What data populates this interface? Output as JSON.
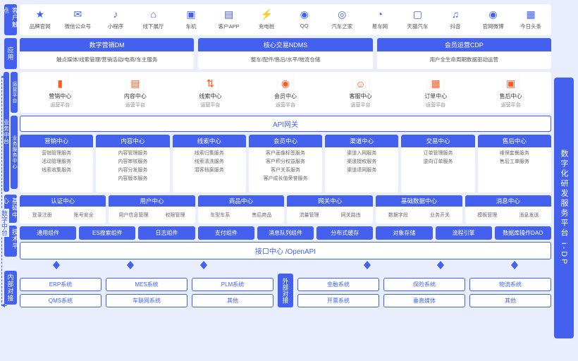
{
  "colors": {
    "primary": "#4361ee",
    "bg": "#e8eefd",
    "accent": "#ff5a1f"
  },
  "left": {
    "l1": "客户触点",
    "l2": "应用",
    "l3": "运营平台",
    "l4": "业务服务中心",
    "l5": "基础中心",
    "l6": "技术平台",
    "l7": "内部对接",
    "midGroup": "业务中台",
    "bracket": "数字中台"
  },
  "right": "数字化研发服务平台 i-DP",
  "touchpoints": [
    {
      "icon": "★",
      "label": "品牌官网"
    },
    {
      "icon": "✉",
      "label": "微信公众号"
    },
    {
      "icon": "♪",
      "label": "小程序"
    },
    {
      "icon": "⌂",
      "label": "线下展厅"
    },
    {
      "icon": "▣",
      "label": "车机"
    },
    {
      "icon": "▤",
      "label": "客户APP"
    },
    {
      "icon": "⚡",
      "label": "充电桩"
    },
    {
      "icon": "◉",
      "label": "QQ"
    },
    {
      "icon": "◎",
      "label": "汽车之家"
    },
    {
      "icon": "◔",
      "label": "易车网"
    },
    {
      "icon": "▢",
      "label": "天猫汽车"
    },
    {
      "icon": "♫",
      "label": "抖音"
    },
    {
      "icon": "◉",
      "label": "官网微博"
    },
    {
      "icon": "▦",
      "label": "今日头条"
    }
  ],
  "apps": [
    {
      "head": "数字营销DM",
      "body": "触点媒体/线索管理/营销活动/电商/车主服务"
    },
    {
      "head": "核心交易NDMS",
      "body": "整车/配件/售后/水平/物流仓储"
    },
    {
      "head": "会员运营CDP",
      "body": "用户全生命周期数据驱动运营"
    }
  ],
  "ops": [
    {
      "icon": "▮",
      "t1": "营销中心",
      "t2": "运营平台"
    },
    {
      "icon": "▤",
      "t1": "内容中心",
      "t2": "运营平台"
    },
    {
      "icon": "⇅",
      "t1": "线索中心",
      "t2": "运营平台"
    },
    {
      "icon": "◉",
      "t1": "会员中心",
      "t2": "运营平台"
    },
    {
      "icon": "☺",
      "t1": "客服中心",
      "t2": "运营平台"
    },
    {
      "icon": "▦",
      "t1": "订单中心",
      "t2": "运营平台"
    },
    {
      "icon": "▣",
      "t1": "售后中心",
      "t2": "运营平台"
    }
  ],
  "api": "API网关",
  "svc": [
    {
      "head": "营销中心",
      "items": [
        "营销管理服务",
        "活动管理服务",
        "线索收集服务"
      ]
    },
    {
      "head": "内容中心",
      "items": [
        "内容管理服务",
        "内容审核服务",
        "内容分发服务",
        "内容版本服务"
      ]
    },
    {
      "head": "线索中心",
      "items": [
        "线索归集服务",
        "线索清洗服务",
        "潜客档案服务"
      ]
    },
    {
      "head": "会员中心",
      "items": [
        "客户画像标签服务",
        "客户积分权益服务",
        "客户关系服务",
        "客户成长值荣誉服务"
      ]
    },
    {
      "head": "渠道中心",
      "items": [
        "渠道入网服务",
        "渠道授权服务",
        "渠道退网服务"
      ]
    },
    {
      "head": "交易中心",
      "items": [
        "订单管理服务",
        "逆向订单服务"
      ]
    },
    {
      "head": "售后中心",
      "items": [
        "维保套餐服务",
        "售后工单服务"
      ]
    }
  ],
  "base": [
    {
      "head": "认证中心",
      "items": [
        "登录注册",
        "账号安全"
      ]
    },
    {
      "head": "用户中心",
      "items": [
        "用户信息管理",
        "权限管理"
      ]
    },
    {
      "head": "商品中心",
      "items": [
        "车型车系",
        "售后商品"
      ]
    },
    {
      "head": "网关中心",
      "items": [
        "流量管理",
        "网关路由"
      ]
    },
    {
      "head": "基础数据中心",
      "items": [
        "数据字段",
        "业务开关"
      ]
    },
    {
      "head": "消息中心",
      "items": [
        "模板管理",
        "消息发送"
      ]
    }
  ],
  "tech": [
    "通用组件",
    "ES搜索组件",
    "日志组件",
    "支付组件",
    "消息队列组件",
    "分布式缓存",
    "对象存储",
    "流程引擎",
    "数据库操作DAO"
  ],
  "openapi": "接口中心 /OpenAPI",
  "ext_label": "外部对接",
  "internal": {
    "row1": [
      "ERP系统",
      "MES系统",
      "PLM系统"
    ],
    "row2": [
      "QMS系统",
      "车联网系统",
      "其他"
    ]
  },
  "external": {
    "row1": [
      "金融系统",
      "保险系统",
      "物流系统"
    ],
    "row2": [
      "开票系统",
      "垂直媒体",
      "其他"
    ]
  }
}
